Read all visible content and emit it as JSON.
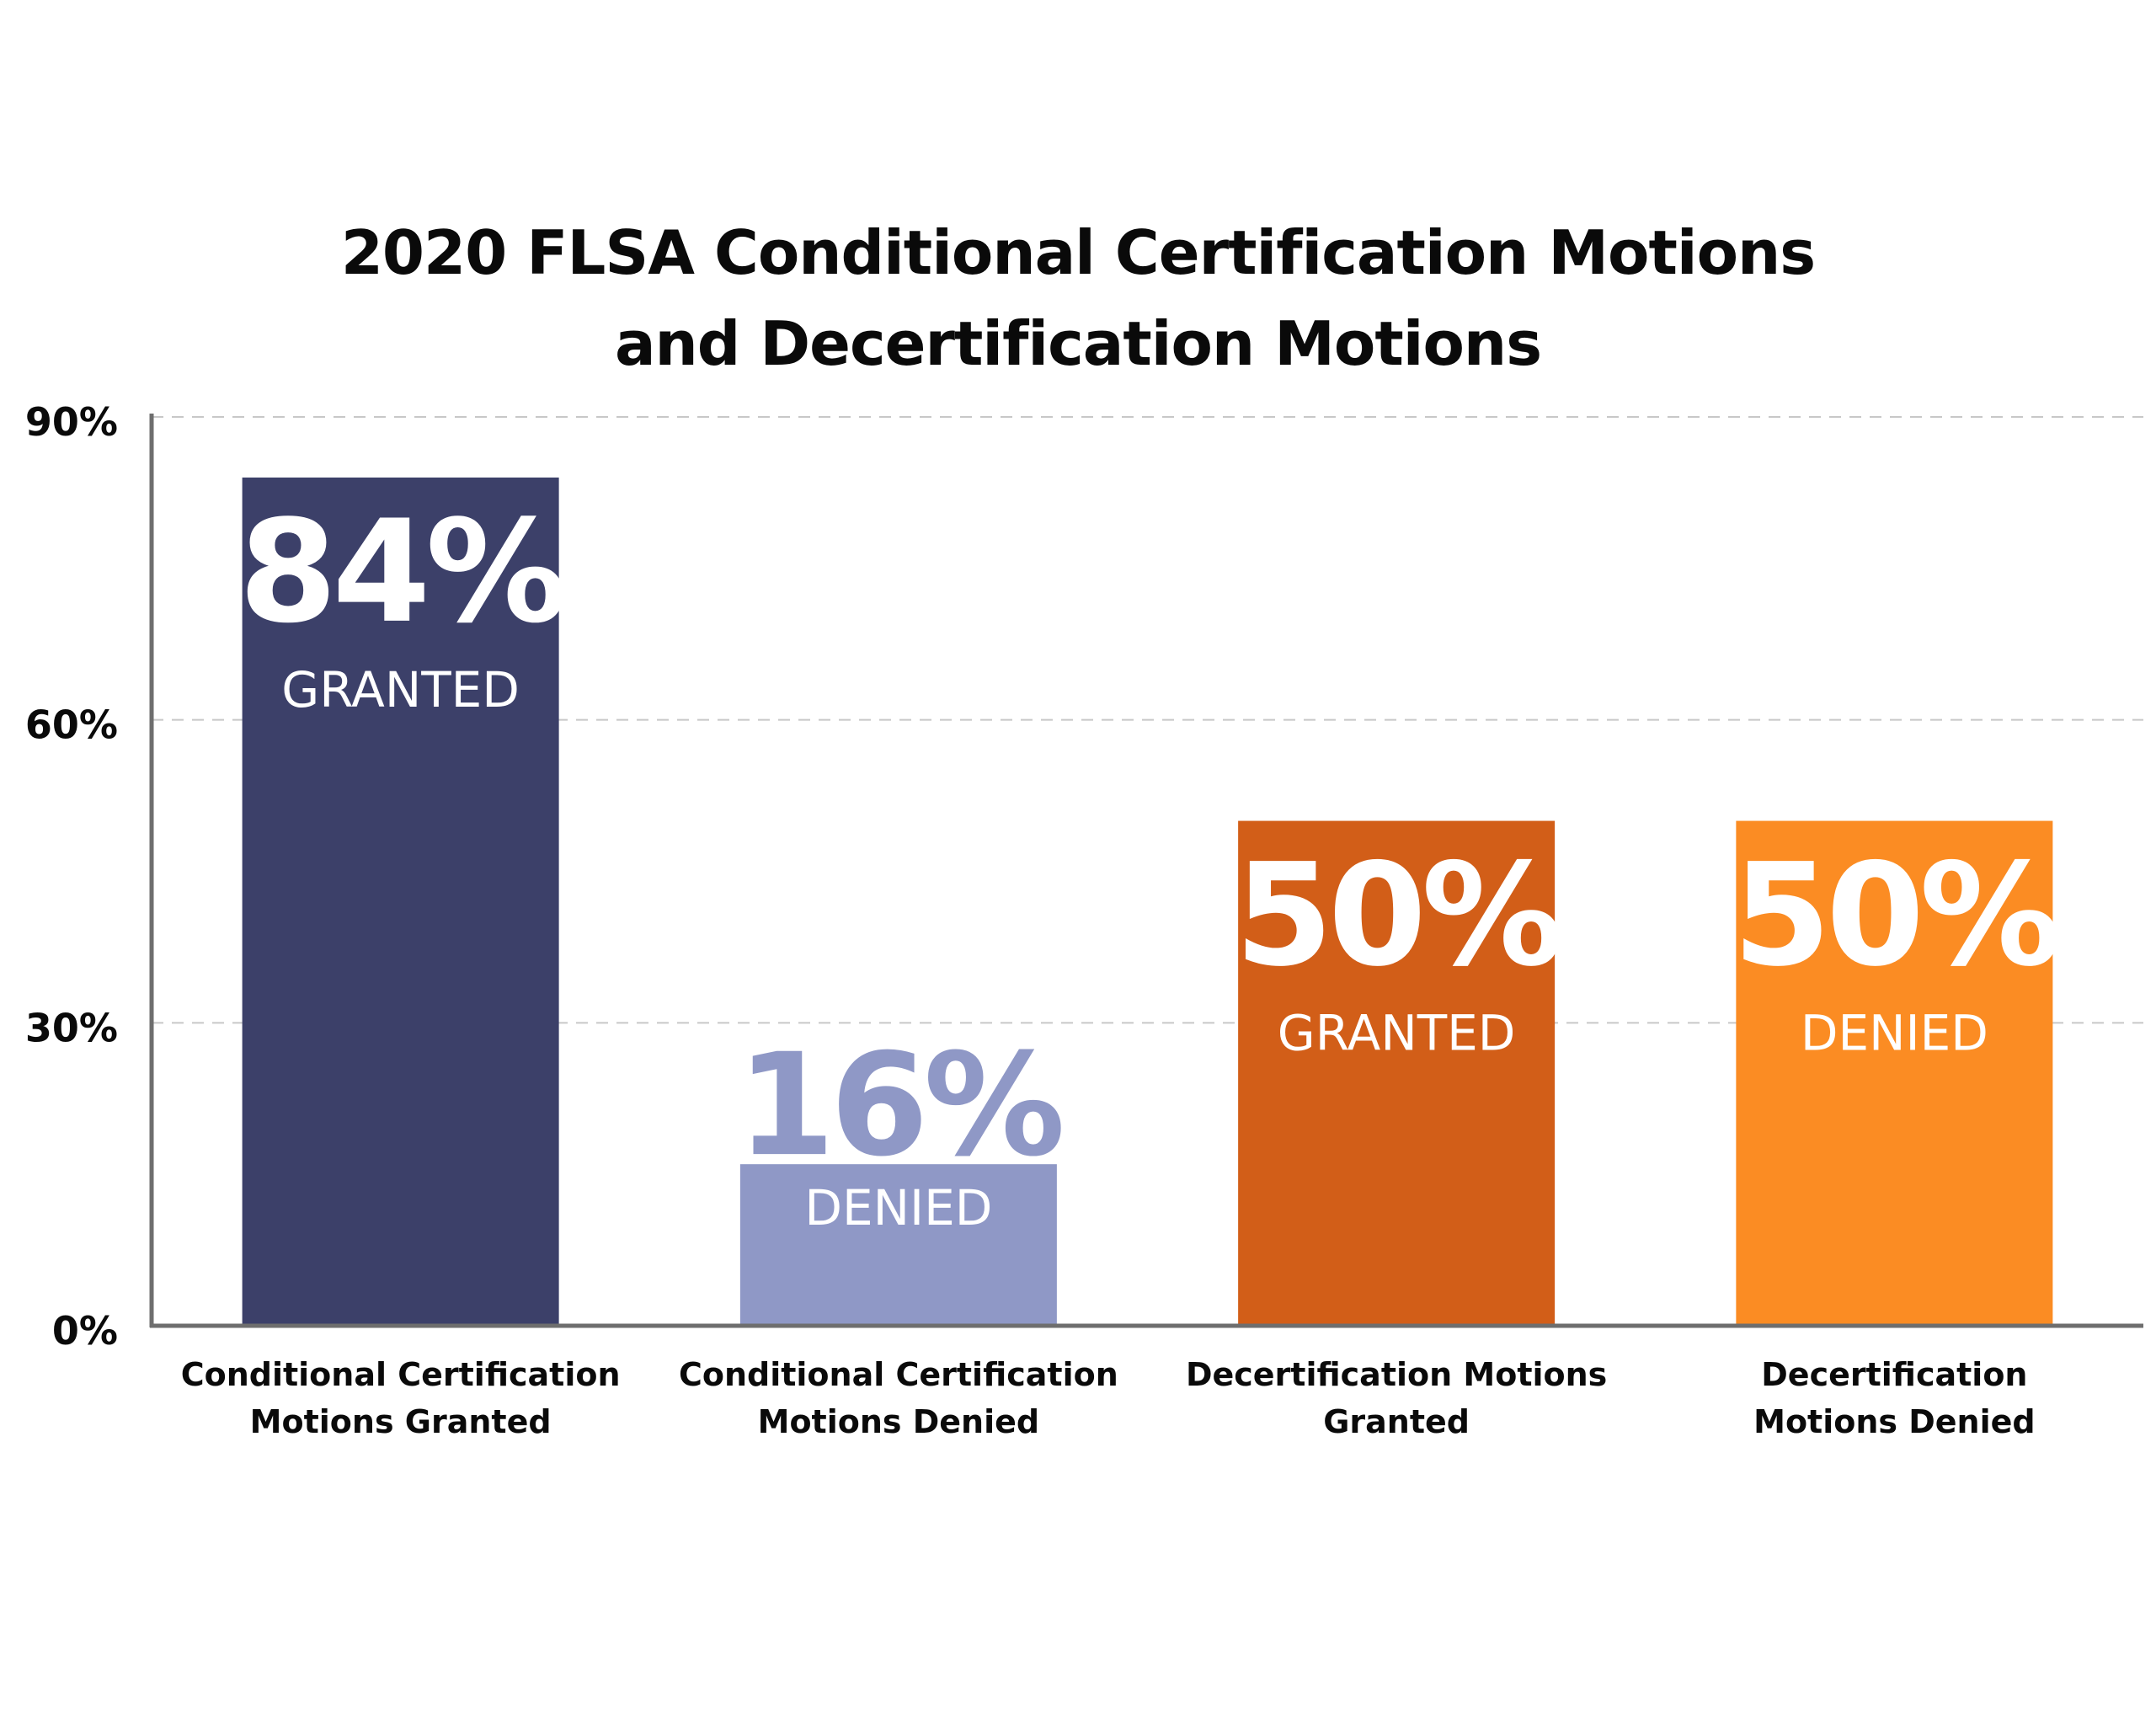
{
  "chart_data": {
    "type": "bar",
    "title": [
      "2020 FLSA Conditional Certification Motions",
      "and Decertification Motions"
    ],
    "xlabel": "",
    "ylabel": "",
    "ylim": [
      0,
      90
    ],
    "yticks": [
      0,
      30,
      60,
      90
    ],
    "ytick_labels": [
      "0%",
      "30%",
      "60%",
      "90%"
    ],
    "grid": true,
    "legend": "none",
    "categories": [
      [
        "Conditional Certification",
        "Motions Granted"
      ],
      [
        "Conditional Certification",
        "Motions Denied"
      ],
      [
        "Decertification Motions",
        "Granted"
      ],
      [
        "Decertification",
        "Motions Denied"
      ]
    ],
    "values": [
      84,
      16,
      50,
      50
    ],
    "data_labels": [
      {
        "value": "84%",
        "caption": "GRANTED"
      },
      {
        "value": "16%",
        "caption": "DENIED"
      },
      {
        "value": "50%",
        "caption": "GRANTED"
      },
      {
        "value": "50%",
        "caption": "DENIED"
      }
    ],
    "colors": [
      "#3c4069",
      "#8f98c6",
      "#d25e18",
      "#fb8c23"
    ],
    "label_colors": [
      "#ffffff",
      "#8f98c6",
      "#ffffff",
      "#ffffff"
    ]
  }
}
